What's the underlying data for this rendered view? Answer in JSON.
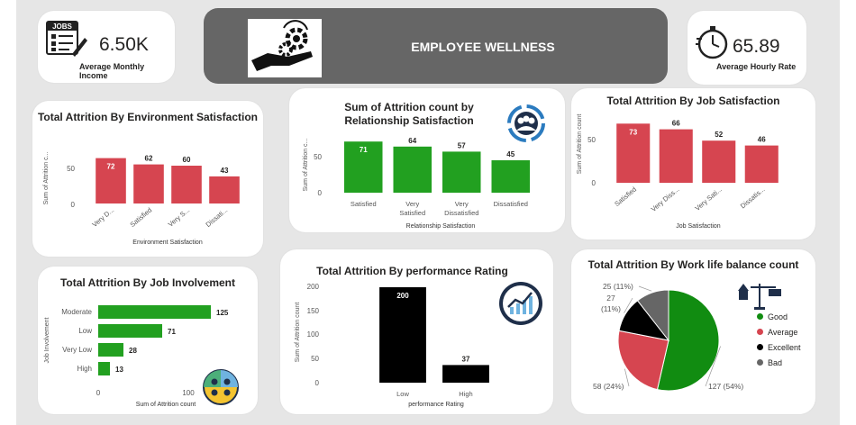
{
  "kpis": {
    "income": {
      "value": "6.50K",
      "label": "Average  Monthly Income",
      "icon": "jobs-application-icon"
    },
    "hourly": {
      "value": "65.89",
      "label": "Average Hourly Rate",
      "icon": "stopwatch-icon"
    }
  },
  "banner": {
    "title": "EMPLOYEE WELLNESS",
    "icon": "hand-gear-icon"
  },
  "charts": {
    "env": {
      "title": "Total Attrition By Environment Satisfaction",
      "ylabel": "Sum of Attrition c...",
      "xlabel": "Environment Satisfaction",
      "tick_50": "50",
      "tick_0": "0"
    },
    "rel": {
      "title": "Sum of Attrition count by Relationship Satisfaction",
      "ylabel": "Sum of Attrition c...",
      "xlabel": "Relationship Satisfaction",
      "tick_50": "50",
      "tick_0": "0",
      "icon": "team-circle-icon"
    },
    "job": {
      "title": "Total Attrition By Job Satisfaction",
      "ylabel": "Sum of Attrition count",
      "xlabel": "Job Satisfaction",
      "tick_50": "50",
      "tick_0": "0"
    },
    "inv": {
      "title": "Total Attrition By Job Involvement",
      "ylabel": "Job Involvement",
      "xlabel": "Sum of Attrition count",
      "tick_0": "0",
      "tick_100": "100",
      "icon": "people-circle-icon"
    },
    "perf": {
      "title": "Total Attrition By performance Rating",
      "ylabel": "Sum of Attrition count",
      "xlabel": "performance Rating",
      "tick_200": "200",
      "tick_150": "150",
      "tick_100": "100",
      "tick_50": "50",
      "tick_0": "0",
      "icon": "growth-chart-icon"
    },
    "wlb": {
      "title": "Total Attrition By Work life balance count",
      "icon": "balance-scale-icon"
    }
  },
  "chart_data": [
    {
      "type": "bar",
      "title": "Total Attrition By Environment Satisfaction",
      "categories": [
        "Very D...",
        "Satisfied",
        "Very S...",
        "Dissati..."
      ],
      "values": [
        72,
        62,
        60,
        43
      ],
      "xlabel": "Environment Satisfaction",
      "ylabel": "Sum of Attrition c...",
      "ylim": [
        0,
        80
      ],
      "color": "#d64550"
    },
    {
      "type": "bar",
      "title": "Sum of Attrition count by Relationship Satisfaction",
      "categories": [
        "Satisfied",
        "Very Satisfied",
        "Very Dissatisfied",
        "Dissatisfied"
      ],
      "values": [
        71,
        64,
        57,
        45
      ],
      "xlabel": "Relationship Satisfaction",
      "ylabel": "Sum of Attrition c...",
      "ylim": [
        0,
        80
      ],
      "color": "#22a020"
    },
    {
      "type": "bar",
      "title": "Total Attrition By Job Satisfaction",
      "categories": [
        "Satisfied",
        "Very Diss...",
        "Very Sati...",
        "Dissatis..."
      ],
      "values": [
        73,
        66,
        52,
        46
      ],
      "xlabel": "Job Satisfaction",
      "ylabel": "Sum of Attrition count",
      "ylim": [
        0,
        80
      ],
      "color": "#d64550"
    },
    {
      "type": "bar",
      "orientation": "horizontal",
      "title": "Total Attrition By Job Involvement",
      "categories": [
        "Moderate",
        "Low",
        "Very Low",
        "High"
      ],
      "values": [
        125,
        71,
        28,
        13
      ],
      "xlabel": "Sum of Attrition count",
      "ylabel": "Job Involvement",
      "xlim": [
        0,
        130
      ],
      "color": "#22a020"
    },
    {
      "type": "bar",
      "title": "Total Attrition By performance Rating",
      "categories": [
        "Low",
        "High"
      ],
      "values": [
        200,
        37
      ],
      "xlabel": "performance Rating",
      "ylabel": "Sum of Attrition count",
      "ylim": [
        0,
        200
      ],
      "color": "#000000"
    },
    {
      "type": "pie",
      "title": "Total Attrition By Work life balance count",
      "labels": [
        "Good",
        "Average",
        "Excellent",
        "Bad"
      ],
      "values": [
        127,
        58,
        27,
        25
      ],
      "percent_labels": [
        "127 (54%)",
        "58 (24%)",
        "27 (11%)",
        "25 (11%)"
      ],
      "colors": [
        "#118c11",
        "#d64550",
        "#000000",
        "#666666"
      ],
      "legend_position": "right"
    }
  ]
}
